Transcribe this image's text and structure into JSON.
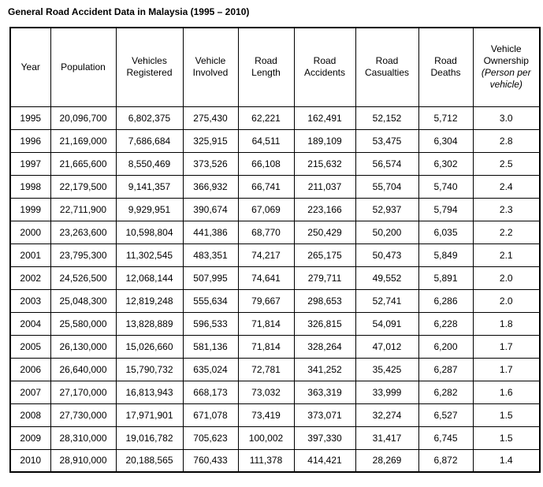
{
  "title": "General Road Accident Data in Malaysia (1995 – 2010)",
  "table": {
    "column_keys": [
      "year",
      "population",
      "vehicles_registered",
      "vehicle_involved",
      "road_length",
      "road_accidents",
      "road_casualties",
      "road_deaths",
      "vehicle_ownership"
    ],
    "columns": [
      {
        "label": "Year"
      },
      {
        "label": "Population"
      },
      {
        "label": "Vehicles Registered"
      },
      {
        "label": "Vehicle Involved"
      },
      {
        "label": "Road Length"
      },
      {
        "label": "Road Accidents"
      },
      {
        "label": "Road Casualties"
      },
      {
        "label": "Road Deaths"
      },
      {
        "label": "Vehicle Ownership",
        "sublabel": "(Person per vehicle)"
      }
    ],
    "rows": [
      [
        "1995",
        "20,096,700",
        "6,802,375",
        "275,430",
        "62,221",
        "162,491",
        "52,152",
        "5,712",
        "3.0"
      ],
      [
        "1996",
        "21,169,000",
        "7,686,684",
        "325,915",
        "64,511",
        "189,109",
        "53,475",
        "6,304",
        "2.8"
      ],
      [
        "1997",
        "21,665,600",
        "8,550,469",
        "373,526",
        "66,108",
        "215,632",
        "56,574",
        "6,302",
        "2.5"
      ],
      [
        "1998",
        "22,179,500",
        "9,141,357",
        "366,932",
        "66,741",
        "211,037",
        "55,704",
        "5,740",
        "2.4"
      ],
      [
        "1999",
        "22,711,900",
        "9,929,951",
        "390,674",
        "67,069",
        "223,166",
        "52,937",
        "5,794",
        "2.3"
      ],
      [
        "2000",
        "23,263,600",
        "10,598,804",
        "441,386",
        "68,770",
        "250,429",
        "50,200",
        "6,035",
        "2.2"
      ],
      [
        "2001",
        "23,795,300",
        "11,302,545",
        "483,351",
        "74,217",
        "265,175",
        "50,473",
        "5,849",
        "2.1"
      ],
      [
        "2002",
        "24,526,500",
        "12,068,144",
        "507,995",
        "74,641",
        "279,711",
        "49,552",
        "5,891",
        "2.0"
      ],
      [
        "2003",
        "25,048,300",
        "12,819,248",
        "555,634",
        "79,667",
        "298,653",
        "52,741",
        "6,286",
        "2.0"
      ],
      [
        "2004",
        "25,580,000",
        "13,828,889",
        "596,533",
        "71,814",
        "326,815",
        "54,091",
        "6,228",
        "1.8"
      ],
      [
        "2005",
        "26,130,000",
        "15,026,660",
        "581,136",
        "71,814",
        "328,264",
        "47,012",
        "6,200",
        "1.7"
      ],
      [
        "2006",
        "26,640,000",
        "15,790,732",
        "635,024",
        "72,781",
        "341,252",
        "35,425",
        "6,287",
        "1.7"
      ],
      [
        "2007",
        "27,170,000",
        "16,813,943",
        "668,173",
        "73,032",
        "363,319",
        "33,999",
        "6,282",
        "1.6"
      ],
      [
        "2008",
        "27,730,000",
        "17,971,901",
        "671,078",
        "73,419",
        "373,071",
        "32,274",
        "6,527",
        "1.5"
      ],
      [
        "2009",
        "28,310,000",
        "19,016,782",
        "705,623",
        "100,002",
        "397,330",
        "31,417",
        "6,745",
        "1.5"
      ],
      [
        "2010",
        "28,910,000",
        "20,188,565",
        "760,433",
        "111,378",
        "414,421",
        "28,269",
        "6,872",
        "1.4"
      ]
    ]
  }
}
